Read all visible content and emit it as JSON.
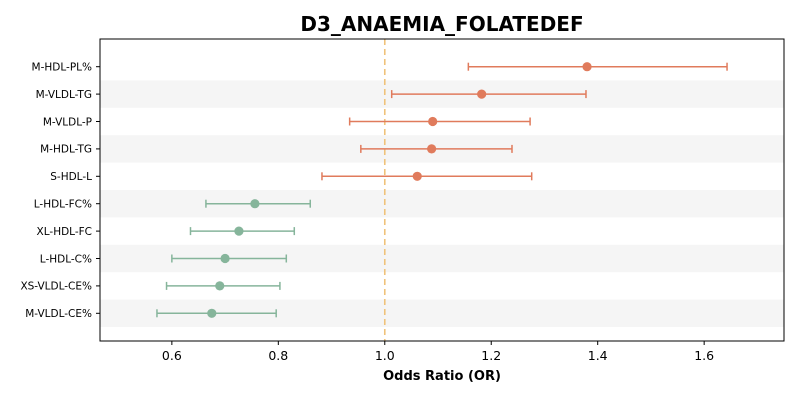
{
  "chart_data": {
    "type": "forest",
    "title": "D3_ANAEMIA_FOLATEDEF",
    "xlabel": "Odds Ratio (OR)",
    "ylabel": "",
    "xlim": [
      0.465,
      1.75
    ],
    "xticks": [
      "0.6",
      "0.8",
      "1.0",
      "1.2",
      "1.4",
      "1.6"
    ],
    "reference_line": 1.0,
    "colors": {
      "positive": "#e07b5c",
      "negative": "#86b59b",
      "reference": "#f0c27a",
      "band": "#f5f5f5"
    },
    "rows": [
      {
        "label": "M-HDL-PL%",
        "or": 1.38,
        "lower": 1.157,
        "upper": 1.643
      },
      {
        "label": "M-VLDL-TG",
        "or": 1.182,
        "lower": 1.013,
        "upper": 1.378
      },
      {
        "label": "M-VLDL-P",
        "or": 1.09,
        "lower": 0.934,
        "upper": 1.273
      },
      {
        "label": "M-HDL-TG",
        "or": 1.088,
        "lower": 0.955,
        "upper": 1.239
      },
      {
        "label": "S-HDL-L",
        "or": 1.061,
        "lower": 0.882,
        "upper": 1.276
      },
      {
        "label": "L-HDL-FC%",
        "or": 0.756,
        "lower": 0.664,
        "upper": 0.86
      },
      {
        "label": "XL-HDL-FC",
        "or": 0.726,
        "lower": 0.635,
        "upper": 0.83
      },
      {
        "label": "L-HDL-C%",
        "or": 0.7,
        "lower": 0.6,
        "upper": 0.815
      },
      {
        "label": "XS-VLDL-CE%",
        "or": 0.69,
        "lower": 0.59,
        "upper": 0.803
      },
      {
        "label": "M-VLDL-CE%",
        "or": 0.675,
        "lower": 0.572,
        "upper": 0.796
      }
    ]
  }
}
